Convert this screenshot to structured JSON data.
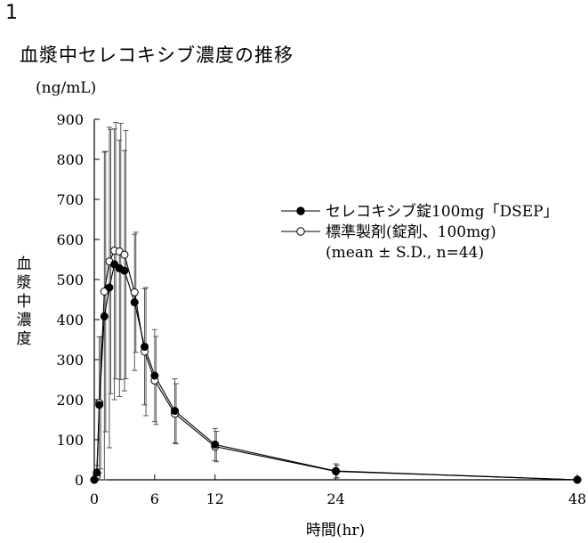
{
  "figure": {
    "number": "1",
    "title": "血漿中セレコキシブ濃度の推移"
  },
  "chart_data": {
    "type": "line",
    "title": "血漿中セレコキシブ濃度の推移",
    "ylabel": "血漿中濃度",
    "yunit": "(ng/mL)",
    "xlabel": "時間(hr)",
    "xlim": [
      0,
      48
    ],
    "ylim": [
      0,
      900
    ],
    "xticks": [
      0,
      6,
      12,
      24,
      48
    ],
    "yticks": [
      0,
      100,
      200,
      300,
      400,
      500,
      600,
      700,
      800,
      900
    ],
    "legend_position": "upper-right",
    "legend_note": "(mean ± S.D., n=44)",
    "series": [
      {
        "name": "セレコキシブ錠100mg「DSEP」",
        "marker": "filled-circle",
        "x": [
          0,
          0.25,
          0.5,
          1,
          1.5,
          2,
          2.5,
          3,
          4,
          5,
          6,
          8,
          12,
          24,
          48
        ],
        "y": [
          0,
          18,
          187,
          408,
          480,
          538,
          528,
          522,
          443,
          332,
          260,
          172,
          88,
          22,
          0
        ],
        "sd": [
          0,
          18,
          170,
          410,
          400,
          338,
          320,
          300,
          170,
          145,
          115,
          80,
          40,
          18,
          2
        ]
      },
      {
        "name": "標準製剤(錠剤、100mg)",
        "marker": "open-circle",
        "x": [
          0,
          0.25,
          0.5,
          1,
          1.5,
          2,
          2.5,
          3,
          4,
          5,
          6,
          8,
          12,
          24,
          48
        ],
        "y": [
          0,
          10,
          192,
          470,
          545,
          572,
          570,
          562,
          468,
          320,
          248,
          165,
          83,
          21,
          0
        ],
        "sd": [
          0,
          10,
          165,
          350,
          330,
          320,
          320,
          310,
          150,
          160,
          110,
          75,
          38,
          16,
          2
        ]
      }
    ]
  }
}
